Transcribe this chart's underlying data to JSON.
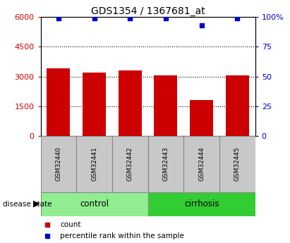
{
  "title": "GDS1354 / 1367681_at",
  "samples": [
    "GSM32440",
    "GSM32441",
    "GSM32442",
    "GSM32443",
    "GSM32444",
    "GSM32445"
  ],
  "counts": [
    3400,
    3200,
    3300,
    3050,
    1800,
    3050
  ],
  "percentile_ranks": [
    99,
    99,
    99,
    99,
    93,
    99
  ],
  "groups": [
    "control",
    "control",
    "control",
    "cirrhosis",
    "cirrhosis",
    "cirrhosis"
  ],
  "control_color": "#90EE90",
  "cirrhosis_color": "#32CD32",
  "bar_color": "#CC0000",
  "dot_color": "#0000CC",
  "left_yticks": [
    0,
    1500,
    3000,
    4500,
    6000
  ],
  "right_yticks": [
    0,
    25,
    50,
    75,
    100
  ],
  "ylim_left": [
    0,
    6000
  ],
  "ylim_right": [
    0,
    100
  ],
  "bg_color": "#FFFFFF",
  "label_fontsize": 8,
  "title_fontsize": 10,
  "tick_color_left": "#CC0000",
  "tick_color_right": "#0000CC",
  "legend_items": [
    "count",
    "percentile rank within the sample"
  ],
  "gray_color": "#C8C8C8",
  "box_edge_color": "#888888"
}
